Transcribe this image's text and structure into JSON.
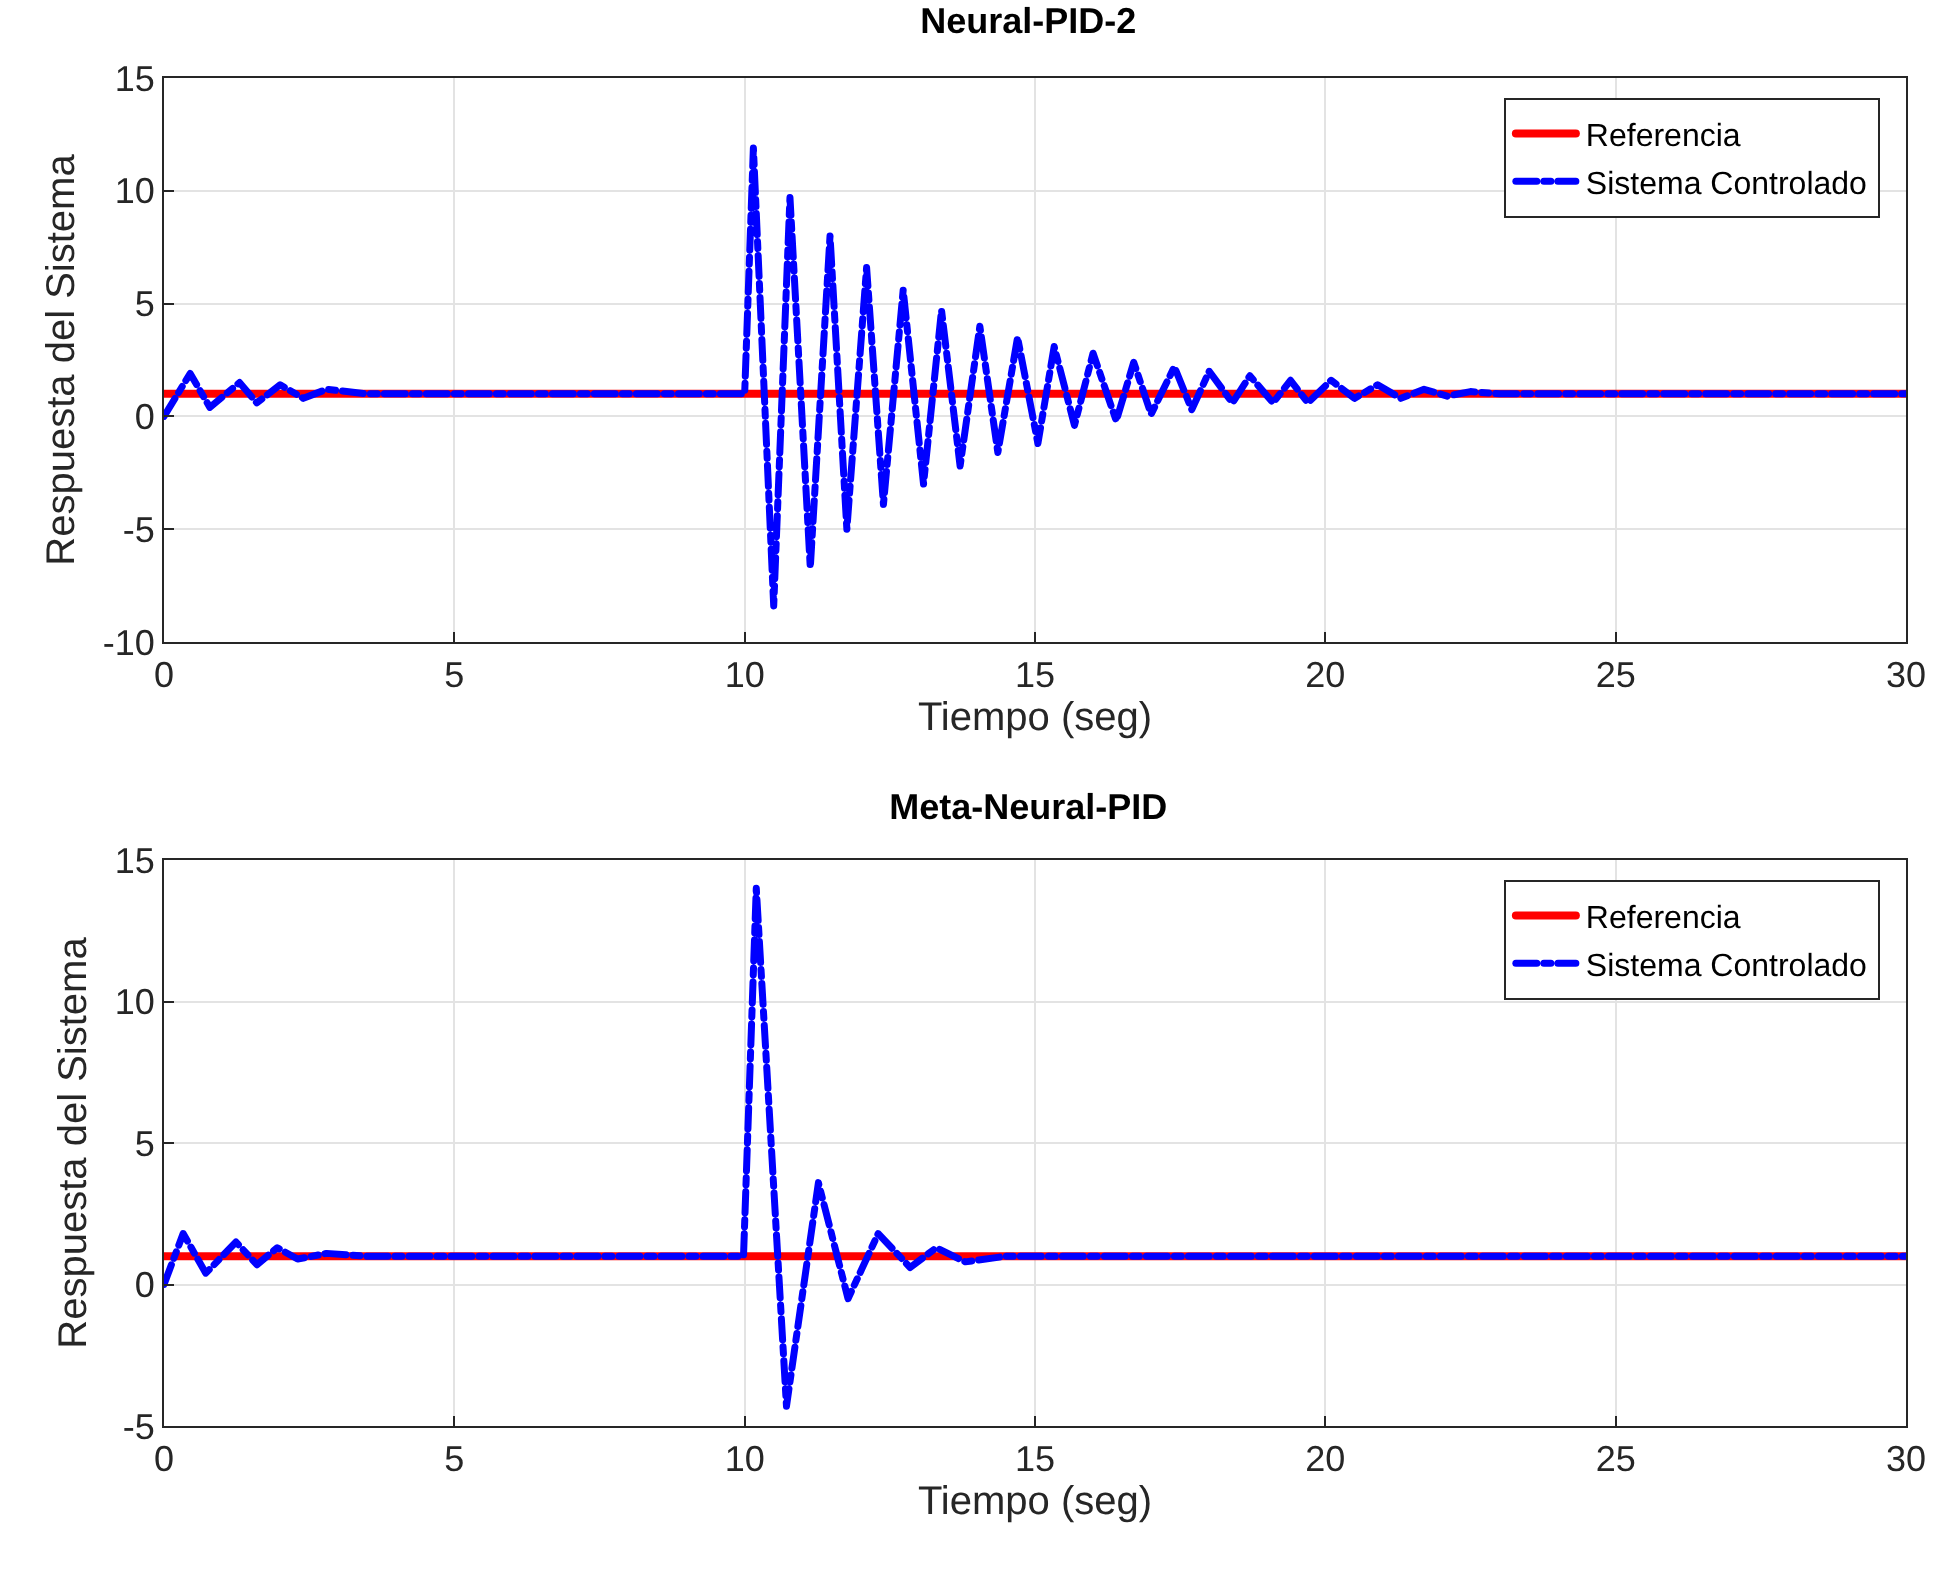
{
  "chart_data": [
    {
      "type": "line",
      "title": "Neural-PID-2",
      "xlabel": "Tiempo (seg)",
      "ylabel": "Respuesta del Sistema",
      "xlim": [
        0,
        30
      ],
      "xticks": [
        0,
        5,
        10,
        15,
        20,
        25,
        30
      ],
      "ylim": [
        -10,
        15
      ],
      "yticks": [
        -10,
        -5,
        0,
        5,
        10,
        15
      ],
      "grid": true,
      "legend": "top right",
      "series": [
        {
          "name": "Referencia",
          "color": "#ff0000",
          "line_style": "solid",
          "x": [
            0,
            30
          ],
          "values": [
            1,
            1
          ]
        },
        {
          "name": "Sistema Controlado",
          "color": "#0000ff",
          "line_style": "dashed",
          "x": [
            0,
            0.45,
            0.79,
            1.3,
            1.6,
            2.0,
            2.4,
            2.8,
            3.5,
            10.0,
            10.15,
            10.5,
            10.78,
            11.13,
            11.47,
            11.76,
            12.1,
            12.39,
            12.73,
            13.08,
            13.39,
            13.71,
            14.05,
            14.36,
            14.7,
            15.05,
            15.33,
            15.68,
            16.0,
            16.4,
            16.7,
            17.0,
            17.4,
            17.7,
            18.0,
            18.4,
            18.7,
            19.1,
            19.4,
            19.7,
            20.1,
            20.5,
            20.9,
            21.3,
            21.7,
            22.1,
            22.5,
            23.0,
            30
          ],
          "values": [
            0,
            1.9,
            0.4,
            1.5,
            0.6,
            1.4,
            0.8,
            1.2,
            1,
            1,
            11.9,
            -8.4,
            9.7,
            -6.7,
            8.0,
            -5.0,
            6.6,
            -3.9,
            5.6,
            -3.0,
            4.7,
            -2.2,
            4.0,
            -1.6,
            3.5,
            -1.2,
            3.1,
            -0.4,
            2.8,
            -0.2,
            2.4,
            0.1,
            2.2,
            0.3,
            2.0,
            0.6,
            1.8,
            0.6,
            1.6,
            0.6,
            1.6,
            0.8,
            1.4,
            0.8,
            1.2,
            0.9,
            1.1,
            1,
            1
          ]
        }
      ]
    },
    {
      "type": "line",
      "title": "Meta-Neural-PID",
      "xlabel": "Tiempo (seg)",
      "ylabel": "Respuesta del Sistema",
      "xlim": [
        0,
        30
      ],
      "xticks": [
        0,
        5,
        10,
        15,
        20,
        25,
        30
      ],
      "ylim": [
        -5,
        15
      ],
      "yticks": [
        -5,
        0,
        5,
        10,
        15
      ],
      "grid": true,
      "legend": "top right",
      "series": [
        {
          "name": "Referencia",
          "color": "#ff0000",
          "line_style": "solid",
          "x": [
            0,
            30
          ],
          "values": [
            1,
            1
          ]
        },
        {
          "name": "Sistema Controlado",
          "color": "#0000ff",
          "line_style": "dashed",
          "x": [
            0,
            0.33,
            0.72,
            1.24,
            1.6,
            1.95,
            2.3,
            2.8,
            3.5,
            9.98,
            10.2,
            10.72,
            11.27,
            11.78,
            12.3,
            12.85,
            13.3,
            13.8,
            14.5,
            30
          ],
          "values": [
            0,
            1.8,
            0.4,
            1.5,
            0.7,
            1.3,
            0.9,
            1.1,
            1,
            1,
            14.0,
            -4.3,
            3.6,
            -0.5,
            1.8,
            0.6,
            1.3,
            0.8,
            1,
            1
          ]
        }
      ]
    }
  ]
}
